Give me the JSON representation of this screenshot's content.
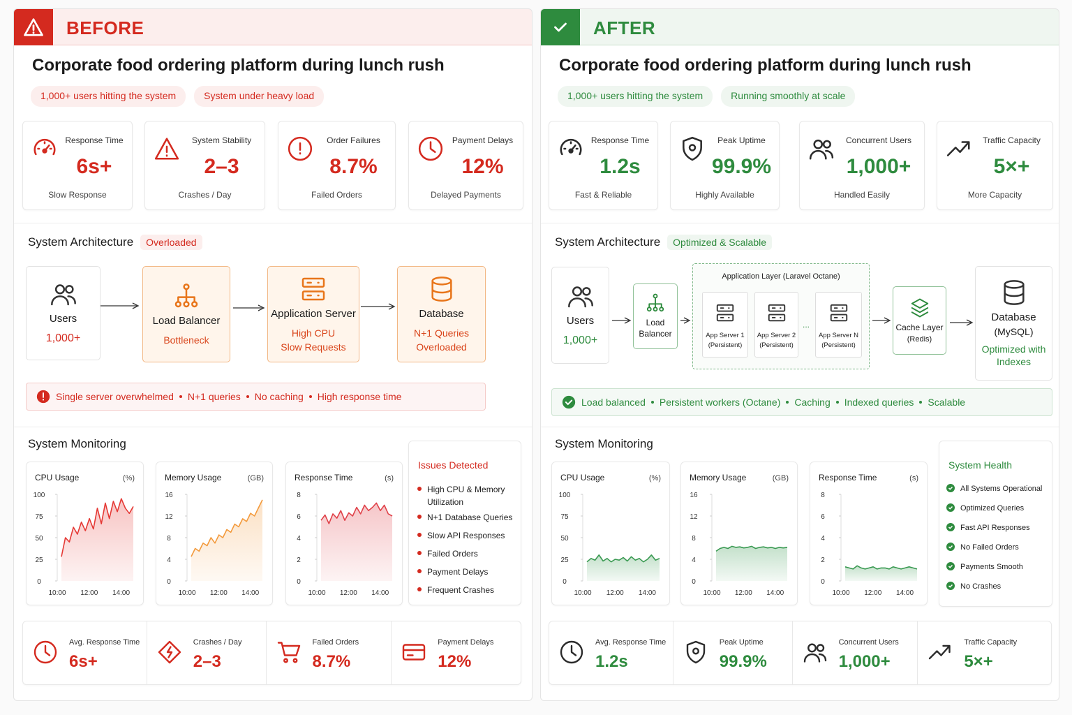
{
  "before": {
    "color": "#d42a1f",
    "header": "BEFORE",
    "title": "Corporate food ordering platform during lunch rush",
    "tags": [
      "1,000+ users hitting the system",
      "System under heavy load"
    ],
    "metrics": [
      {
        "label": "Response Time",
        "value": "6s+",
        "note": "Slow Response"
      },
      {
        "label": "System Stability",
        "value": "2–3",
        "note": "Crashes / Day"
      },
      {
        "label": "Order Failures",
        "value": "8.7%",
        "note": "Failed Orders"
      },
      {
        "label": "Payment Delays",
        "value": "12%",
        "note": "Delayed Payments"
      }
    ],
    "architecture": {
      "title": "System Architecture",
      "badge": "Overloaded",
      "nodes": [
        {
          "label": "Users",
          "lines": [
            "1,000+"
          ]
        },
        {
          "label": "Load Balancer",
          "lines": [
            "Bottleneck"
          ]
        },
        {
          "label": "Application Server",
          "lines": [
            "High CPU",
            "Slow Requests"
          ]
        },
        {
          "label": "Database",
          "lines": [
            "N+1 Queries",
            "Overloaded"
          ]
        }
      ]
    },
    "alert": [
      "Single server overwhelmed",
      "N+1 queries",
      "No caching",
      "High response time"
    ],
    "monitoring": {
      "title": "System Monitoring",
      "charts": [
        {
          "type": "area",
          "title": "CPU Usage",
          "unit": "(%)",
          "color": "#e53935",
          "categories": [
            "10:00",
            null,
            null,
            null,
            null,
            null,
            null,
            null,
            "12:00",
            null,
            null,
            null,
            null,
            null,
            null,
            null,
            "14:00",
            null,
            null
          ],
          "values": [
            28,
            50,
            45,
            62,
            54,
            68,
            58,
            72,
            60,
            84,
            66,
            90,
            72,
            92,
            80,
            95,
            84,
            78,
            86
          ],
          "ylim": [
            0,
            100
          ],
          "yticks": [
            0,
            25,
            50,
            75,
            100
          ]
        },
        {
          "type": "area",
          "title": "Memory Usage",
          "unit": "(GB)",
          "color": "#f39a3c",
          "categories": [
            "10:00",
            null,
            null,
            null,
            null,
            null,
            null,
            null,
            "12:00",
            null,
            null,
            null,
            null,
            null,
            null,
            null,
            "14:00",
            null,
            null
          ],
          "values": [
            4.5,
            6,
            5.5,
            7,
            6.5,
            8,
            7,
            8.5,
            8,
            9.5,
            9,
            10.5,
            10,
            11.5,
            11,
            12.5,
            12,
            13.5,
            15
          ],
          "ylim": [
            0,
            16
          ],
          "yticks": [
            0,
            4,
            8,
            12,
            16
          ]
        },
        {
          "type": "area",
          "title": "Response Time",
          "unit": "(s)",
          "color": "#e0424a",
          "categories": [
            "10:00",
            null,
            null,
            null,
            null,
            null,
            null,
            null,
            "12:00",
            null,
            null,
            null,
            null,
            null,
            null,
            null,
            "14:00",
            null,
            null
          ],
          "values": [
            5.6,
            6.1,
            5.3,
            6.2,
            5.8,
            6.5,
            5.6,
            6.3,
            6,
            6.8,
            6.2,
            7,
            6.5,
            6.8,
            7.2,
            6.5,
            7,
            6.2,
            6
          ],
          "ylim": [
            0,
            8
          ],
          "yticks": [
            0,
            2,
            4,
            6,
            8
          ]
        }
      ],
      "status": {
        "title": "Issues Detected",
        "items": [
          "High CPU & Memory Utilization",
          "N+1 Database Queries",
          "Slow API Responses",
          "Failed Orders",
          "Payment Delays",
          "Frequent Crashes"
        ]
      }
    },
    "stats": [
      {
        "label": "Avg. Response Time",
        "value": "6s+"
      },
      {
        "label": "Crashes / Day",
        "value": "2–3"
      },
      {
        "label": "Failed Orders",
        "value": "8.7%"
      },
      {
        "label": "Payment Delays",
        "value": "12%"
      }
    ]
  },
  "after": {
    "color": "#2e8b3e",
    "header": "AFTER",
    "title": "Corporate food ordering platform during lunch rush",
    "tags": [
      "1,000+ users hitting the system",
      "Running smoothly at scale"
    ],
    "metrics": [
      {
        "label": "Response Time",
        "value": "1.2s",
        "note": "Fast & Reliable"
      },
      {
        "label": "Peak Uptime",
        "value": "99.9%",
        "note": "Highly Available"
      },
      {
        "label": "Concurrent Users",
        "value": "1,000+",
        "note": "Handled Easily"
      },
      {
        "label": "Traffic Capacity",
        "value": "5×+",
        "note": "More Capacity"
      }
    ],
    "architecture": {
      "title": "System Architecture",
      "badge": "Optimized & Scalable",
      "nodes": [
        {
          "label": "Users",
          "lines": [
            "1,000+"
          ]
        },
        {
          "label": "Load Balancer"
        },
        {
          "title": "Application Layer (Laravel Octane)",
          "servers": [
            {
              "label": "App Server 1",
              "note": "(Persistent)"
            },
            {
              "label": "App Server 2",
              "note": "(Persistent)"
            },
            {
              "label": "App Server N",
              "note": "(Persistent)"
            }
          ],
          "ellipsis": "..."
        },
        {
          "label": "Cache Layer",
          "note": "(Redis)"
        },
        {
          "label": "Database",
          "note": "(MySQL)",
          "lines": [
            "Optimized with Indexes"
          ]
        }
      ]
    },
    "alert": [
      "Load balanced",
      "Persistent workers (Octane)",
      "Caching",
      "Indexed queries",
      "Scalable"
    ],
    "monitoring": {
      "title": "System Monitoring",
      "charts": [
        {
          "type": "area",
          "title": "CPU Usage",
          "unit": "(%)",
          "color": "#3a9a52",
          "categories": [
            "10:00",
            null,
            null,
            null,
            null,
            null,
            null,
            null,
            "12:00",
            null,
            null,
            null,
            null,
            null,
            null,
            null,
            "14:00",
            null,
            null
          ],
          "values": [
            22,
            26,
            24,
            30,
            23,
            26,
            22,
            25,
            24,
            27,
            23,
            28,
            24,
            26,
            22,
            25,
            30,
            24,
            26
          ],
          "ylim": [
            0,
            100
          ],
          "yticks": [
            0,
            25,
            50,
            75,
            100
          ]
        },
        {
          "type": "area",
          "title": "Memory Usage",
          "unit": "(GB)",
          "color": "#3a9a52",
          "categories": [
            "10:00",
            null,
            null,
            null,
            null,
            null,
            null,
            null,
            "12:00",
            null,
            null,
            null,
            null,
            null,
            null,
            null,
            "14:00",
            null,
            null
          ],
          "values": [
            5.5,
            6,
            6.2,
            6,
            6.4,
            6.2,
            6.3,
            6.1,
            6.2,
            6.4,
            6,
            6.2,
            6.3,
            6.1,
            6.2,
            6,
            6.2,
            6.1,
            6.2
          ],
          "ylim": [
            0,
            16
          ],
          "yticks": [
            0,
            4,
            8,
            12,
            16
          ]
        },
        {
          "type": "area",
          "title": "Response Time",
          "unit": "(s)",
          "color": "#3a9a52",
          "categories": [
            "10:00",
            null,
            null,
            null,
            null,
            null,
            null,
            null,
            "12:00",
            null,
            null,
            null,
            null,
            null,
            null,
            null,
            "14:00",
            null,
            null
          ],
          "values": [
            1.3,
            1.2,
            1.1,
            1.4,
            1.2,
            1.1,
            1.2,
            1.3,
            1.1,
            1.2,
            1.2,
            1.1,
            1.3,
            1.2,
            1.1,
            1.2,
            1.3,
            1.2,
            1.1
          ],
          "ylim": [
            0,
            8
          ],
          "yticks": [
            0,
            2,
            4,
            6,
            8
          ]
        }
      ],
      "status": {
        "title": "System Health",
        "items": [
          "All Systems Operational",
          "Optimized Queries",
          "Fast API Responses",
          "No Failed Orders",
          "Payments Smooth",
          "No Crashes"
        ]
      }
    },
    "stats": [
      {
        "label": "Avg. Response Time",
        "value": "1.2s"
      },
      {
        "label": "Peak Uptime",
        "value": "99.9%"
      },
      {
        "label": "Concurrent Users",
        "value": "1,000+"
      },
      {
        "label": "Traffic Capacity",
        "value": "5×+"
      }
    ]
  }
}
